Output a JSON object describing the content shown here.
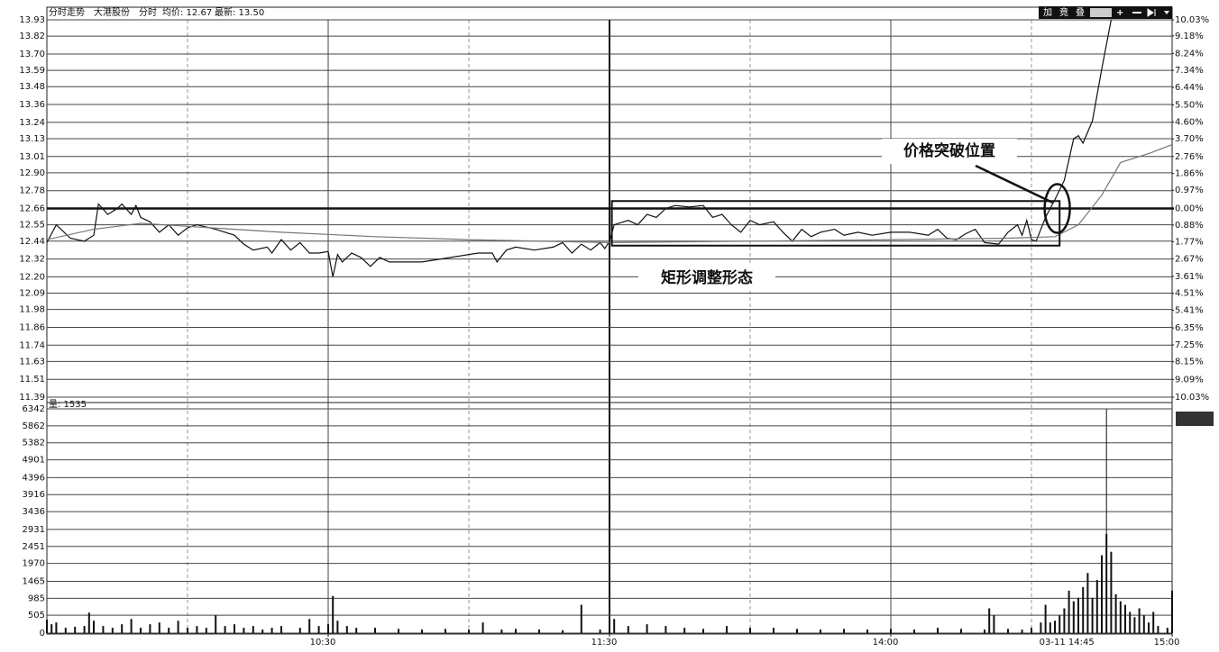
{
  "chart_data": [
    {
      "type": "line",
      "title": "分时走势",
      "subtitle": "大港股份",
      "stats": [
        "均价: 12.67",
        "最新: 13.50"
      ],
      "toolbar": [
        "加",
        "竟",
        "叠"
      ],
      "annotations": [
        "价格突破位置",
        "矩形调整形态"
      ],
      "xlim": [
        0,
        240
      ],
      "ylim": [
        11.39,
        13.93
      ],
      "yticks": [
        {
          "value": 13.93,
          "label": "13.93"
        },
        {
          "value": 13.82,
          "label": "13.82"
        },
        {
          "value": 13.7,
          "label": "13.70"
        },
        {
          "value": 13.59,
          "label": "13.59"
        },
        {
          "value": 13.48,
          "label": "13.48"
        },
        {
          "value": 13.36,
          "label": "13.36"
        },
        {
          "value": 13.24,
          "label": "13.24"
        },
        {
          "value": 13.13,
          "label": "13.13"
        },
        {
          "value": 13.01,
          "label": "13.01"
        },
        {
          "value": 12.9,
          "label": "12.90"
        },
        {
          "value": 12.78,
          "label": "12.78"
        },
        {
          "value": 12.66,
          "label": "12.66"
        },
        {
          "value": 12.55,
          "label": "12.55"
        },
        {
          "value": 12.44,
          "label": "12.44"
        },
        {
          "value": 12.32,
          "label": "12.32"
        },
        {
          "value": 12.2,
          "label": "12.20"
        },
        {
          "value": 12.09,
          "label": "12.09"
        },
        {
          "value": 11.98,
          "label": "11.98"
        },
        {
          "value": 11.86,
          "label": "11.86"
        },
        {
          "value": 11.74,
          "label": "11.74"
        },
        {
          "value": 11.63,
          "label": "11.63"
        },
        {
          "value": 11.51,
          "label": "11.51"
        },
        {
          "value": 11.39,
          "label": "11.39"
        }
      ],
      "y2lim": [
        -10.03,
        10.03
      ],
      "y2ticks": [
        {
          "value": 10.03,
          "label": "10.03%"
        },
        {
          "value": 9.18,
          "label": "9.18%"
        },
        {
          "value": 8.24,
          "label": "8.24%"
        },
        {
          "value": 7.34,
          "label": "7.34%"
        },
        {
          "value": 6.44,
          "label": "6.44%"
        },
        {
          "value": 5.5,
          "label": "5.50%"
        },
        {
          "value": 4.6,
          "label": "4.60%"
        },
        {
          "value": 3.7,
          "label": "3.70%"
        },
        {
          "value": 2.76,
          "label": "2.76%"
        },
        {
          "value": 1.86,
          "label": "1.86%"
        },
        {
          "value": 0.97,
          "label": "0.97%"
        },
        {
          "value": 0,
          "label": "0.00%"
        },
        {
          "value": -0.88,
          "label": "0.88%"
        },
        {
          "value": -1.77,
          "label": "1.77%"
        },
        {
          "value": -2.67,
          "label": "2.67%"
        },
        {
          "value": -3.61,
          "label": "3.61%"
        },
        {
          "value": -4.51,
          "label": "4.51%"
        },
        {
          "value": -5.41,
          "label": "5.41%"
        },
        {
          "value": -6.35,
          "label": "6.35%"
        },
        {
          "value": -7.25,
          "label": "7.25%"
        },
        {
          "value": -8.15,
          "label": "8.15%"
        },
        {
          "value": -9.09,
          "label": "9.09%"
        },
        {
          "value": -10.03,
          "label": "10.03%"
        }
      ],
      "series": [
        {
          "name": "分时",
          "color": "#111111",
          "x": [
            0,
            2,
            5,
            8,
            10,
            11,
            13,
            15,
            16,
            18,
            19,
            20,
            22,
            24,
            26,
            28,
            30,
            32,
            36,
            40,
            42,
            44,
            47,
            48,
            50,
            52,
            54,
            56,
            58,
            60,
            61,
            62,
            63,
            65,
            67,
            69,
            71,
            73,
            76,
            80,
            84,
            88,
            92,
            95,
            96,
            98,
            100,
            104,
            108,
            110,
            112,
            114,
            116,
            118,
            119,
            120,
            121,
            124,
            126,
            128,
            130,
            132,
            134,
            137,
            140,
            142,
            144,
            146,
            148,
            150,
            152,
            155,
            157,
            159,
            161,
            163,
            165,
            168,
            170,
            173,
            176,
            180,
            184,
            186,
            188,
            190,
            192,
            194,
            196,
            198,
            200,
            203,
            205,
            207,
            208,
            209,
            210,
            211,
            213,
            215,
            217,
            219,
            220,
            221,
            223,
            225,
            227
          ],
          "values": [
            12.43,
            12.55,
            12.46,
            12.44,
            12.48,
            12.69,
            12.62,
            12.66,
            12.69,
            12.62,
            12.68,
            12.6,
            12.57,
            12.5,
            12.55,
            12.48,
            12.53,
            12.55,
            12.52,
            12.48,
            12.42,
            12.38,
            12.4,
            12.36,
            12.45,
            12.38,
            12.43,
            12.36,
            12.36,
            12.37,
            12.2,
            12.35,
            12.3,
            12.36,
            12.33,
            12.27,
            12.33,
            12.3,
            12.3,
            12.3,
            12.32,
            12.34,
            12.36,
            12.36,
            12.3,
            12.38,
            12.4,
            12.38,
            12.4,
            12.43,
            12.36,
            12.42,
            12.38,
            12.43,
            12.39,
            12.44,
            12.55,
            12.58,
            12.55,
            12.62,
            12.6,
            12.66,
            12.68,
            12.67,
            12.68,
            12.6,
            12.62,
            12.55,
            12.5,
            12.58,
            12.55,
            12.57,
            12.5,
            12.44,
            12.52,
            12.47,
            12.5,
            12.52,
            12.48,
            12.5,
            12.48,
            12.5,
            12.5,
            12.49,
            12.48,
            12.52,
            12.46,
            12.45,
            12.49,
            12.52,
            12.43,
            12.42,
            12.5,
            12.55,
            12.48,
            12.58,
            12.45,
            12.44,
            12.6,
            12.72,
            12.85,
            13.13,
            13.15,
            13.1,
            13.25,
            13.6,
            13.93
          ]
        },
        {
          "color": "#777777",
          "x": [
            0,
            10,
            20,
            30,
            50,
            70,
            90,
            120,
            150,
            180,
            205,
            215,
            220,
            225,
            229,
            235,
            240
          ],
          "values": [
            12.45,
            12.52,
            12.56,
            12.54,
            12.5,
            12.47,
            12.45,
            12.43,
            12.44,
            12.45,
            12.46,
            12.47,
            12.55,
            12.75,
            12.97,
            13.03,
            13.09
          ]
        }
      ]
    },
    {
      "type": "bar",
      "label": "量: 1535",
      "color": "#111111",
      "xlim": [
        0,
        240
      ],
      "ylim": [
        0,
        6342
      ],
      "yticks": [
        6342,
        5862,
        5382,
        4901,
        4396,
        3916,
        3436,
        2931,
        2451,
        1970,
        1465,
        985,
        505,
        0
      ],
      "xticks": [
        {
          "value": 60,
          "label": "10:30"
        },
        {
          "value": 120,
          "label": "11:30"
        },
        {
          "value": 180,
          "label": "14:00"
        },
        {
          "value": 240,
          "label": "15:00"
        }
      ],
      "cursor_label": "03-11 14:45",
      "x": [
        0,
        1,
        2,
        4,
        6,
        8,
        9,
        10,
        12,
        14,
        16,
        18,
        20,
        22,
        24,
        26,
        28,
        30,
        32,
        34,
        36,
        38,
        40,
        42,
        44,
        46,
        48,
        50,
        54,
        56,
        58,
        60,
        61,
        62,
        64,
        66,
        70,
        75,
        80,
        85,
        90,
        93,
        97,
        100,
        105,
        110,
        114,
        118,
        120,
        121,
        124,
        128,
        132,
        136,
        140,
        145,
        150,
        155,
        160,
        165,
        170,
        175,
        180,
        185,
        190,
        195,
        200,
        201,
        202,
        205,
        208,
        210,
        212,
        213,
        214,
        215,
        216,
        217,
        218,
        219,
        220,
        221,
        222,
        223,
        224,
        225,
        226,
        227,
        228,
        229,
        230,
        231,
        232,
        233,
        234,
        235,
        236,
        237,
        239,
        240
      ],
      "values": [
        380,
        250,
        300,
        150,
        180,
        200,
        580,
        350,
        200,
        150,
        250,
        400,
        150,
        250,
        300,
        150,
        350,
        150,
        200,
        150,
        500,
        200,
        250,
        150,
        200,
        100,
        150,
        200,
        150,
        400,
        200,
        250,
        1050,
        350,
        200,
        150,
        150,
        120,
        100,
        120,
        100,
        300,
        100,
        120,
        100,
        80,
        800,
        100,
        100,
        400,
        200,
        250,
        200,
        150,
        120,
        200,
        150,
        150,
        120,
        100,
        120,
        100,
        120,
        100,
        150,
        120,
        100,
        700,
        500,
        120,
        100,
        150,
        300,
        800,
        300,
        350,
        500,
        700,
        1200,
        900,
        1000,
        1300,
        1700,
        1000,
        1500,
        2200,
        2800,
        2300,
        1100,
        900,
        800,
        600,
        450,
        700,
        500,
        300,
        600,
        200,
        150,
        1200
      ]
    }
  ]
}
